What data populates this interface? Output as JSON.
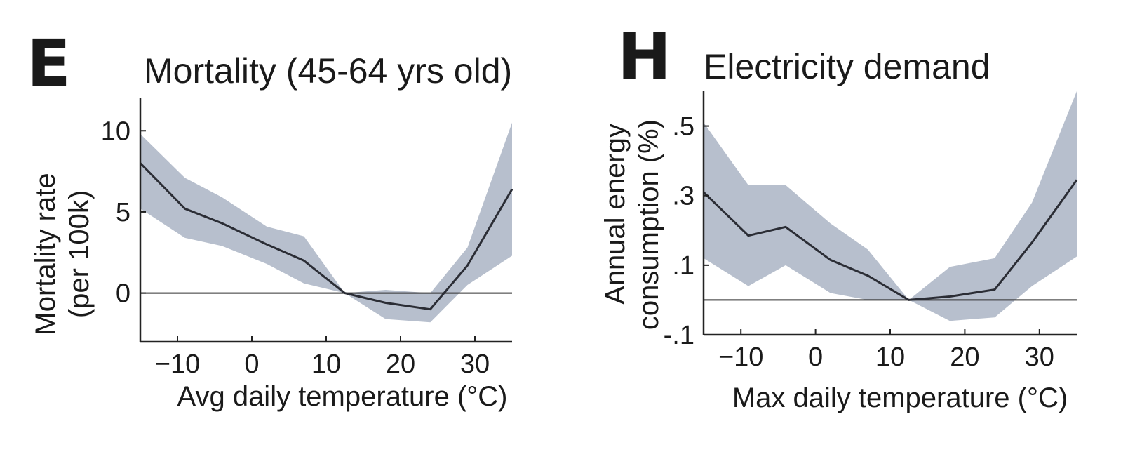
{
  "chart_data": [
    {
      "type": "line",
      "panel": "E",
      "title": "Mortality (45-64 yrs old)",
      "xlabel": "Avg daily temperature (°C)",
      "ylabel": "Mortality rate",
      "ylabel2": "(per 100k)",
      "xlim": [
        -15,
        35
      ],
      "ylim": [
        -3,
        12
      ],
      "xticks": [
        -10,
        0,
        10,
        20,
        30
      ],
      "xtick_labels": [
        "−10",
        "0",
        "10",
        "20",
        "30"
      ],
      "yticks": [
        0,
        5,
        10
      ],
      "ytick_labels": [
        "0",
        "5",
        "10"
      ],
      "zero_line": true,
      "grid": false,
      "x": [
        -15,
        -9,
        -4,
        2,
        7,
        12.5,
        18,
        24,
        29,
        35
      ],
      "series": [
        {
          "values": [
            8.0,
            5.2,
            4.3,
            3.0,
            2.0,
            0.0,
            -0.6,
            -1.0,
            1.7,
            6.4
          ],
          "lower": [
            5.2,
            3.4,
            2.9,
            1.8,
            0.6,
            0.0,
            -1.6,
            -1.8,
            0.5,
            2.3
          ],
          "upper": [
            9.8,
            7.1,
            5.9,
            4.1,
            3.5,
            0.0,
            0.2,
            0.0,
            2.8,
            10.5
          ]
        }
      ],
      "colors": {
        "line": "#2b2d35",
        "band": "#b7bfcd"
      }
    },
    {
      "type": "line",
      "panel": "H",
      "title": "Electricity demand",
      "xlabel": "Max daily temperature (°C)",
      "ylabel": "Annual energy",
      "ylabel2": "consumption (%)",
      "xlim": [
        -15,
        35
      ],
      "ylim": [
        -0.1,
        0.6
      ],
      "xticks": [
        -10,
        0,
        10,
        20,
        30
      ],
      "xtick_labels": [
        "−10",
        "0",
        "10",
        "20",
        "30"
      ],
      "yticks": [
        -0.1,
        0.1,
        0.3,
        0.5
      ],
      "ytick_labels": [
        "-.1",
        ".1",
        ".3",
        ".5"
      ],
      "zero_line": true,
      "grid": false,
      "x": [
        -15,
        -9,
        -4,
        2,
        7,
        12.5,
        18,
        24,
        29,
        35
      ],
      "series": [
        {
          "values": [
            0.31,
            0.185,
            0.21,
            0.115,
            0.07,
            0.0,
            0.01,
            0.03,
            0.165,
            0.345
          ],
          "lower": [
            0.12,
            0.04,
            0.1,
            0.02,
            0.0,
            0.0,
            -0.06,
            -0.05,
            0.04,
            0.125
          ],
          "upper": [
            0.51,
            0.33,
            0.33,
            0.22,
            0.145,
            0.0,
            0.095,
            0.12,
            0.28,
            0.6
          ]
        }
      ],
      "colors": {
        "line": "#2b2d35",
        "band": "#b7bfcd"
      }
    }
  ]
}
